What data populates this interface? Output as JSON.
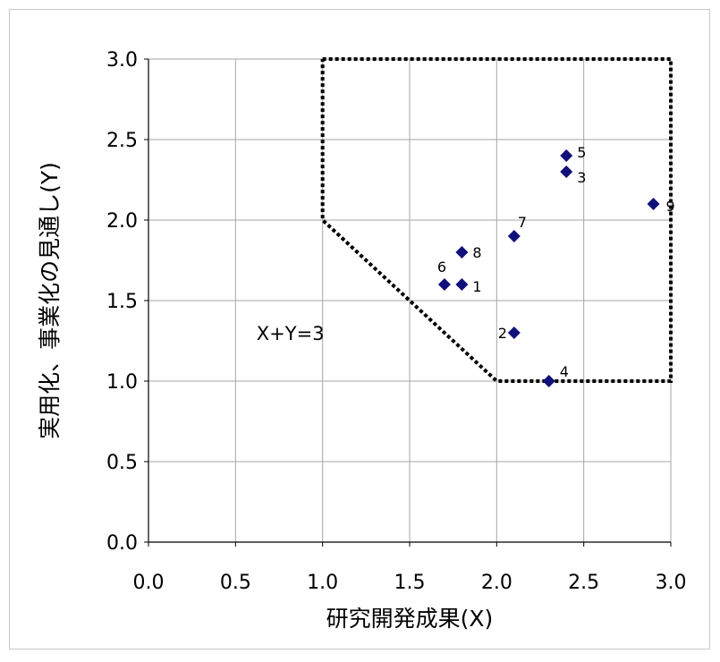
{
  "chart_data": {
    "type": "scatter",
    "title": "",
    "xlabel": "研究開発成果(X)",
    "ylabel": "実用化、事業化の見通し(Y)",
    "xlim": [
      0,
      3
    ],
    "ylim": [
      0,
      3
    ],
    "xticks": [
      "0.0",
      "0.5",
      "1.0",
      "1.5",
      "2.0",
      "2.5",
      "3.0"
    ],
    "yticks": [
      "0.0",
      "0.5",
      "1.0",
      "1.5",
      "2.0",
      "2.5",
      "3.0"
    ],
    "grid": true,
    "legend": "none",
    "marker": "diamond",
    "marker_color": "#10107a",
    "points": [
      {
        "label": "1",
        "x": 1.8,
        "y": 1.6
      },
      {
        "label": "2",
        "x": 2.1,
        "y": 1.3
      },
      {
        "label": "3",
        "x": 2.4,
        "y": 2.3
      },
      {
        "label": "4",
        "x": 2.3,
        "y": 1.0
      },
      {
        "label": "5",
        "x": 2.4,
        "y": 2.4
      },
      {
        "label": "6",
        "x": 1.7,
        "y": 1.6
      },
      {
        "label": "7",
        "x": 2.1,
        "y": 1.9
      },
      {
        "label": "8",
        "x": 1.8,
        "y": 1.8
      },
      {
        "label": "9",
        "x": 2.9,
        "y": 2.1
      }
    ],
    "region_boundary": {
      "style": "dotted",
      "vertices": [
        [
          1.0,
          3.0
        ],
        [
          3.0,
          3.0
        ],
        [
          3.0,
          1.0
        ],
        [
          2.0,
          1.0
        ],
        [
          1.0,
          2.0
        ],
        [
          1.0,
          3.0
        ]
      ]
    },
    "annotations": [
      {
        "text": "X+Y=3",
        "x": 0.6,
        "y": 1.3
      }
    ]
  }
}
